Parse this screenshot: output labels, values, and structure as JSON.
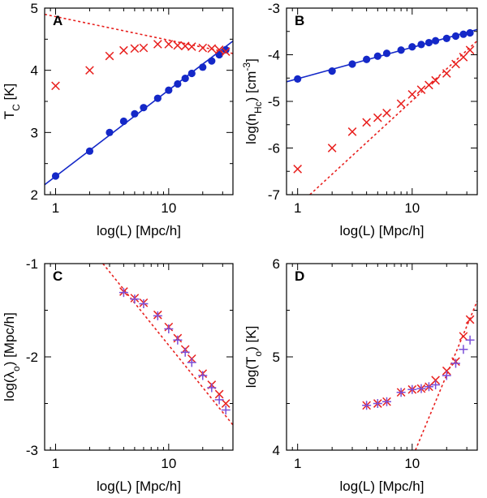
{
  "colors": {
    "blue": "#1428c8",
    "red": "#e8201e",
    "purple": "#7b4fd8",
    "axis": "#000000"
  },
  "chart_data": [
    {
      "panel": "A",
      "type": "scatter",
      "xscale": "log",
      "xlim": [
        0.8,
        37
      ],
      "ylim": [
        2,
        5
      ],
      "xticks": [
        {
          "v": 1,
          "label": "1"
        },
        {
          "v": 10,
          "label": "10"
        }
      ],
      "yticks": [
        {
          "v": 2,
          "label": "2"
        },
        {
          "v": 3,
          "label": "3"
        },
        {
          "v": 4,
          "label": "4"
        },
        {
          "v": 5,
          "label": "5"
        }
      ],
      "xlabel": "log(L) [Mpc/h]",
      "ylabel": {
        "main": "T",
        "sub": "C",
        "tail": " [K]"
      },
      "series": [
        {
          "name": "blue circles",
          "marker": "circle",
          "color": "blue",
          "x": [
            1,
            2,
            3,
            4,
            5,
            6,
            8,
            10,
            12,
            14,
            16,
            20,
            24,
            28,
            32
          ],
          "y": [
            2.3,
            2.7,
            3.0,
            3.18,
            3.3,
            3.4,
            3.55,
            3.68,
            3.78,
            3.87,
            3.95,
            4.05,
            4.15,
            4.25,
            4.33
          ]
        },
        {
          "name": "red crosses",
          "marker": "x",
          "color": "red",
          "x": [
            1,
            2,
            3,
            4,
            5,
            6,
            8,
            10,
            12,
            14,
            16,
            20,
            24,
            28,
            32
          ],
          "y": [
            3.75,
            4.0,
            4.23,
            4.32,
            4.35,
            4.36,
            4.42,
            4.42,
            4.4,
            4.39,
            4.38,
            4.36,
            4.35,
            4.33,
            4.3
          ]
        }
      ],
      "lines": [
        {
          "name": "blue fit",
          "color": "blue",
          "style": "solid",
          "x": [
            0.8,
            37
          ],
          "y": [
            2.16,
            4.47
          ]
        },
        {
          "name": "red fit",
          "color": "red",
          "style": "dotted",
          "x": [
            0.8,
            37
          ],
          "y": [
            4.9,
            4.27
          ]
        }
      ]
    },
    {
      "panel": "B",
      "type": "scatter",
      "xscale": "log",
      "xlim": [
        0.8,
        37
      ],
      "ylim": [
        -7,
        -3
      ],
      "xticks": [
        {
          "v": 1,
          "label": "1"
        },
        {
          "v": 10,
          "label": "10"
        }
      ],
      "yticks": [
        {
          "v": -7,
          "label": "-7"
        },
        {
          "v": -6,
          "label": "-6"
        },
        {
          "v": -5,
          "label": "-5"
        },
        {
          "v": -4,
          "label": "-4"
        },
        {
          "v": -3,
          "label": "-3"
        }
      ],
      "xlabel": "log(L) [Mpc/h]",
      "ylabel": {
        "main": "log(n",
        "sub": "Hc",
        "tail": ") [cm",
        "sup": "-3",
        "end": "]"
      },
      "series": [
        {
          "name": "blue circles",
          "marker": "circle",
          "color": "blue",
          "x": [
            1,
            2,
            3,
            4,
            5,
            6,
            8,
            10,
            12,
            14,
            16,
            20,
            24,
            28,
            32
          ],
          "y": [
            -4.52,
            -4.35,
            -4.2,
            -4.1,
            -4.03,
            -3.97,
            -3.9,
            -3.83,
            -3.78,
            -3.74,
            -3.7,
            -3.65,
            -3.6,
            -3.56,
            -3.53
          ]
        },
        {
          "name": "red crosses",
          "marker": "x",
          "color": "red",
          "x": [
            1,
            2,
            3,
            4,
            5,
            6,
            8,
            10,
            12,
            14,
            16,
            20,
            24,
            28,
            32
          ],
          "y": [
            -6.45,
            -6.0,
            -5.65,
            -5.45,
            -5.35,
            -5.25,
            -5.05,
            -4.85,
            -4.75,
            -4.65,
            -4.55,
            -4.4,
            -4.2,
            -4.05,
            -3.9
          ]
        }
      ],
      "lines": [
        {
          "name": "blue fit",
          "color": "blue",
          "style": "solid",
          "x": [
            0.8,
            37
          ],
          "y": [
            -4.58,
            -3.46
          ]
        },
        {
          "name": "red fit",
          "color": "red",
          "style": "dotted",
          "x": [
            1.28,
            37
          ],
          "y": [
            -7.0,
            -3.7
          ]
        }
      ]
    },
    {
      "panel": "C",
      "type": "scatter",
      "xscale": "log",
      "xlim": [
        0.8,
        37
      ],
      "ylim": [
        -3,
        -1
      ],
      "xticks": [
        {
          "v": 1,
          "label": "1"
        },
        {
          "v": 10,
          "label": "10"
        }
      ],
      "yticks": [
        {
          "v": -3,
          "label": "-3"
        },
        {
          "v": -2,
          "label": "-2"
        },
        {
          "v": -1,
          "label": "-1"
        }
      ],
      "xlabel": "log(L) [Mpc/h]",
      "ylabel": {
        "main": "log(λ",
        "sub": "o",
        "tail": ") [Mpc/h]"
      },
      "series": [
        {
          "name": "red crosses",
          "marker": "x",
          "color": "red",
          "x": [
            4,
            5,
            6,
            8,
            10,
            12,
            14,
            16,
            20,
            24,
            28,
            32
          ],
          "y": [
            -1.3,
            -1.37,
            -1.42,
            -1.55,
            -1.68,
            -1.8,
            -1.92,
            -2.02,
            -2.18,
            -2.3,
            -2.4,
            -2.5
          ]
        },
        {
          "name": "purple pluses",
          "marker": "plus",
          "color": "purple",
          "x": [
            4,
            5,
            6,
            8,
            10,
            12,
            14,
            16,
            20,
            24,
            28,
            32
          ],
          "y": [
            -1.31,
            -1.38,
            -1.43,
            -1.56,
            -1.7,
            -1.82,
            -1.95,
            -2.06,
            -2.2,
            -2.33,
            -2.46,
            -2.57
          ]
        }
      ],
      "lines": [
        {
          "name": "red fit",
          "color": "red",
          "style": "dotted",
          "x": [
            2.62,
            37
          ],
          "y": [
            -1.0,
            -2.73
          ]
        }
      ]
    },
    {
      "panel": "D",
      "type": "scatter",
      "xscale": "log",
      "xlim": [
        0.8,
        37
      ],
      "ylim": [
        4,
        6
      ],
      "xticks": [
        {
          "v": 1,
          "label": "1"
        },
        {
          "v": 10,
          "label": "10"
        }
      ],
      "yticks": [
        {
          "v": 4,
          "label": "4"
        },
        {
          "v": 5,
          "label": "5"
        },
        {
          "v": 6,
          "label": "6"
        }
      ],
      "xlabel": "log(L) [Mpc/h]",
      "ylabel": {
        "main": "log(T",
        "sub": "o",
        "tail": ") [K]"
      },
      "series": [
        {
          "name": "red crosses",
          "marker": "x",
          "color": "red",
          "x": [
            4,
            5,
            6,
            8,
            10,
            12,
            14,
            16,
            20,
            24,
            28,
            32
          ],
          "y": [
            4.48,
            4.5,
            4.52,
            4.62,
            4.65,
            4.66,
            4.68,
            4.75,
            4.85,
            4.95,
            5.22,
            5.4
          ]
        },
        {
          "name": "purple pluses",
          "marker": "plus",
          "color": "purple",
          "x": [
            4,
            5,
            6,
            8,
            10,
            12,
            14,
            16,
            20,
            24,
            28,
            32
          ],
          "y": [
            4.48,
            4.5,
            4.52,
            4.62,
            4.65,
            4.66,
            4.68,
            4.7,
            4.8,
            4.93,
            5.08,
            5.18
          ]
        }
      ],
      "lines": [
        {
          "name": "red fit",
          "color": "red",
          "style": "dotted",
          "x": [
            10.68,
            37
          ],
          "y": [
            4.0,
            5.6
          ]
        }
      ]
    }
  ]
}
